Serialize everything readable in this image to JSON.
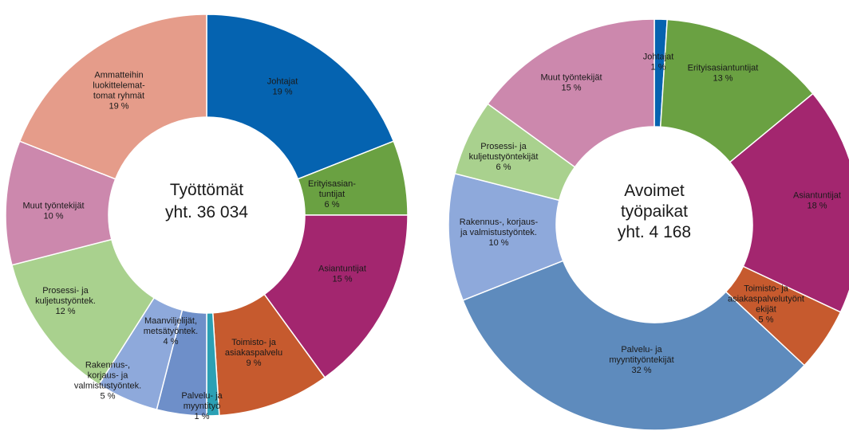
{
  "colors": {
    "johtajat": "#0563b0",
    "erityisasiantuntijat": "#6aa142",
    "asiantuntijat": "#a3266f",
    "toimisto": "#c65a2e",
    "palvelu": "#5e8bbd",
    "palvelu_small": "#2ba0b4",
    "maanviljelijat": "#6e8fc9",
    "rakennus": "#8ea9db",
    "prosessi": "#a9d18e",
    "muut": "#cc88ad",
    "ammatteihin": "#e59c8a",
    "ring_gap": "#ffffff"
  },
  "chart_data": [
    {
      "type": "pie",
      "variant": "donut",
      "center_lines": [
        "Työttömät",
        "yht. 36 034"
      ],
      "unit": "%",
      "slices": [
        {
          "key": "johtajat",
          "label_lines": [
            "Johtajat",
            "19 %"
          ],
          "value": 19
        },
        {
          "key": "erityisasiantuntijat",
          "label_lines": [
            "Erityisasian-",
            "tuntijat",
            "6 %"
          ],
          "value": 6
        },
        {
          "key": "asiantuntijat",
          "label_lines": [
            "Asiantuntijat",
            "15 %"
          ],
          "value": 15
        },
        {
          "key": "toimisto",
          "label_lines": [
            "Toimisto- ja",
            "asiakaspalvelu",
            "9 %"
          ],
          "value": 9
        },
        {
          "key": "palvelu_small",
          "label_lines": [
            "Palvelu- ja",
            "myyntityö",
            "1 %"
          ],
          "value": 1
        },
        {
          "key": "maanviljelijat",
          "label_lines": [
            "Maanviljelijät,",
            "metsätyöntek.",
            "4 %"
          ],
          "value": 4
        },
        {
          "key": "rakennus",
          "label_lines": [
            "Rakennus-,",
            "korjaus- ja",
            "valmistustyöntek.",
            "5 %"
          ],
          "value": 5
        },
        {
          "key": "prosessi",
          "label_lines": [
            "Prosessi- ja",
            "kuljetustyöntek.",
            "12 %"
          ],
          "value": 12
        },
        {
          "key": "muut",
          "label_lines": [
            "Muut työntekijät",
            "10 %"
          ],
          "value": 10
        },
        {
          "key": "ammatteihin",
          "label_lines": [
            "Ammatteihin",
            "luokittelemat-",
            "tomat ryhmät",
            "19 %"
          ],
          "value": 19
        }
      ]
    },
    {
      "type": "pie",
      "variant": "donut",
      "center_lines": [
        "Avoimet",
        "työpaikat",
        "yht. 4 168"
      ],
      "unit": "%",
      "slices": [
        {
          "key": "johtajat",
          "label_lines": [
            "Johtajat",
            "1 %"
          ],
          "value": 1
        },
        {
          "key": "erityisasiantuntijat",
          "label_lines": [
            "Erityisasiantuntijat",
            "13 %"
          ],
          "value": 13
        },
        {
          "key": "asiantuntijat",
          "label_lines": [
            "Asiantuntijat",
            "18 %"
          ],
          "value": 18
        },
        {
          "key": "toimisto",
          "label_lines": [
            "Toimisto- ja",
            "asiakaspalvelutyönt",
            "ekijät",
            "5 %"
          ],
          "value": 5
        },
        {
          "key": "palvelu",
          "label_lines": [
            "Palvelu- ja",
            "myyntityöntekijät",
            "32 %"
          ],
          "value": 32
        },
        {
          "key": "rakennus",
          "label_lines": [
            "Rakennus-, korjaus-",
            "ja valmistustyöntek.",
            "10 %"
          ],
          "value": 10
        },
        {
          "key": "prosessi",
          "label_lines": [
            "Prosessi- ja",
            "kuljetustyöntekijät",
            "6 %"
          ],
          "value": 6
        },
        {
          "key": "muut",
          "label_lines": [
            "Muut työntekijät",
            "15 %"
          ],
          "value": 15
        }
      ]
    }
  ]
}
